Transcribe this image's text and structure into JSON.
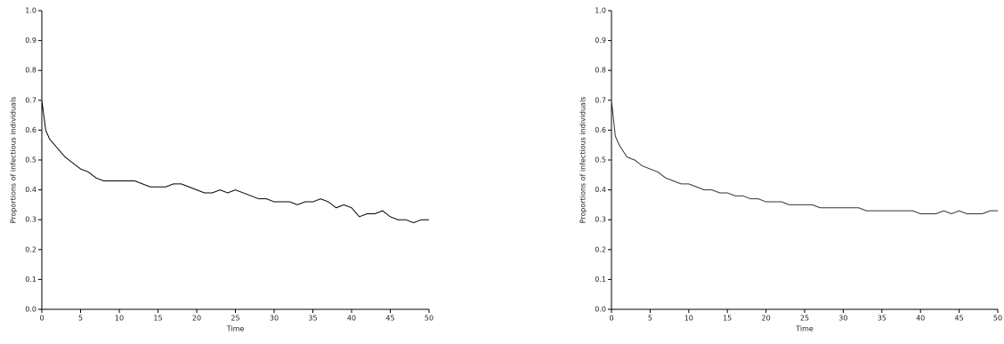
{
  "chart_data": [
    {
      "type": "line",
      "xlabel": "Time",
      "ylabel": "Proportions of infectious individuals",
      "x": [
        0,
        0.5,
        1,
        2,
        3,
        4,
        5,
        6,
        7,
        8,
        9,
        10,
        11,
        12,
        13,
        14,
        15,
        16,
        17,
        18,
        19,
        20,
        21,
        22,
        23,
        24,
        25,
        26,
        27,
        28,
        29,
        30,
        31,
        32,
        33,
        34,
        35,
        36,
        37,
        38,
        39,
        40,
        41,
        42,
        43,
        44,
        45,
        46,
        47,
        48,
        49,
        50
      ],
      "series": [
        {
          "color": "#000000",
          "values": [
            0.7,
            0.6,
            0.57,
            0.54,
            0.51,
            0.49,
            0.47,
            0.46,
            0.44,
            0.43,
            0.43,
            0.43,
            0.43,
            0.43,
            0.42,
            0.41,
            0.41,
            0.41,
            0.42,
            0.42,
            0.41,
            0.4,
            0.39,
            0.39,
            0.4,
            0.39,
            0.4,
            0.39,
            0.38,
            0.37,
            0.37,
            0.36,
            0.36,
            0.36,
            0.35,
            0.36,
            0.36,
            0.37,
            0.36,
            0.34,
            0.35,
            0.34,
            0.31,
            0.32,
            0.32,
            0.33,
            0.31,
            0.3,
            0.3,
            0.29,
            0.3,
            0.3
          ]
        }
      ],
      "xlim": [
        0,
        50
      ],
      "xticks": [
        0,
        5,
        10,
        15,
        20,
        25,
        30,
        35,
        40,
        45,
        50
      ],
      "ylim": [
        0,
        1
      ],
      "yticks": [
        {
          "value": 0,
          "label": "0.0"
        },
        0.1,
        0.2,
        0.3,
        0.4,
        0.5,
        0.6,
        0.7,
        0.8,
        0.9,
        {
          "value": 1,
          "label": "1.0"
        }
      ]
    },
    {
      "type": "line",
      "xlabel": "Time",
      "ylabel": "Proportions of infectious individuals",
      "x": [
        0,
        0.5,
        1,
        2,
        3,
        4,
        5,
        6,
        7,
        8,
        9,
        10,
        11,
        12,
        13,
        14,
        15,
        16,
        17,
        18,
        19,
        20,
        21,
        22,
        23,
        24,
        25,
        26,
        27,
        28,
        29,
        30,
        31,
        32,
        33,
        34,
        35,
        36,
        37,
        38,
        39,
        40,
        41,
        42,
        43,
        44,
        45,
        46,
        47,
        48,
        49,
        50
      ],
      "series": [
        {
          "color": "#333333",
          "values": [
            0.7,
            0.58,
            0.55,
            0.51,
            0.5,
            0.48,
            0.47,
            0.46,
            0.44,
            0.43,
            0.42,
            0.42,
            0.41,
            0.4,
            0.4,
            0.39,
            0.39,
            0.38,
            0.38,
            0.37,
            0.37,
            0.36,
            0.36,
            0.36,
            0.35,
            0.35,
            0.35,
            0.35,
            0.34,
            0.34,
            0.34,
            0.34,
            0.34,
            0.34,
            0.33,
            0.33,
            0.33,
            0.33,
            0.33,
            0.33,
            0.33,
            0.32,
            0.32,
            0.32,
            0.33,
            0.32,
            0.33,
            0.32,
            0.32,
            0.32,
            0.33,
            0.33
          ]
        }
      ],
      "xlim": [
        0,
        50
      ],
      "xticks": [
        0,
        5,
        10,
        15,
        20,
        25,
        30,
        35,
        40,
        45,
        50
      ],
      "ylim": [
        0,
        1
      ],
      "yticks": [
        {
          "value": 0,
          "label": "0.0"
        },
        0.1,
        0.2,
        0.3,
        0.4,
        0.5,
        0.6,
        0.7,
        0.8,
        0.9,
        {
          "value": 1,
          "label": "1.0"
        }
      ]
    }
  ]
}
